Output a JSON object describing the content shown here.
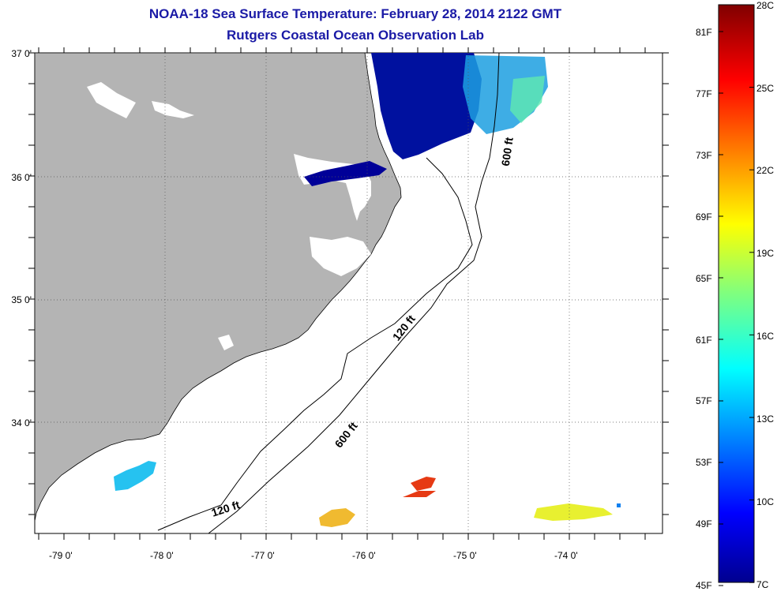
{
  "title": "NOAA-18 Sea Surface Temperature:  February 28, 2014 2122 GMT",
  "subtitle": "Rutgers Coastal Ocean Observation Lab",
  "lat_labels": [
    "37 0'",
    "36 0'",
    "35 0'",
    "34 0'"
  ],
  "lon_labels": [
    "-79 0'",
    "-78 0'",
    "-77 0'",
    "-76 0'",
    "-75 0'",
    "-74 0'"
  ],
  "contour_labels": {
    "shelf_120_north": "120 ft",
    "shelf_120_south": "120 ft",
    "slope_600_north": "600 ft",
    "slope_600_south": "600 ft"
  },
  "colorbar": {
    "celsius": [
      "28C",
      "25C",
      "22C",
      "19C",
      "16C",
      "13C",
      "10C",
      "7C"
    ],
    "fahrenheit": [
      "81F",
      "77F",
      "73F",
      "69F",
      "65F",
      "61F",
      "57F",
      "53F",
      "49F",
      "45F"
    ]
  },
  "colors": {
    "land": "#b4b4b4",
    "title": "#1a1aa6",
    "cold": "#00008f",
    "warm": "#800000"
  }
}
